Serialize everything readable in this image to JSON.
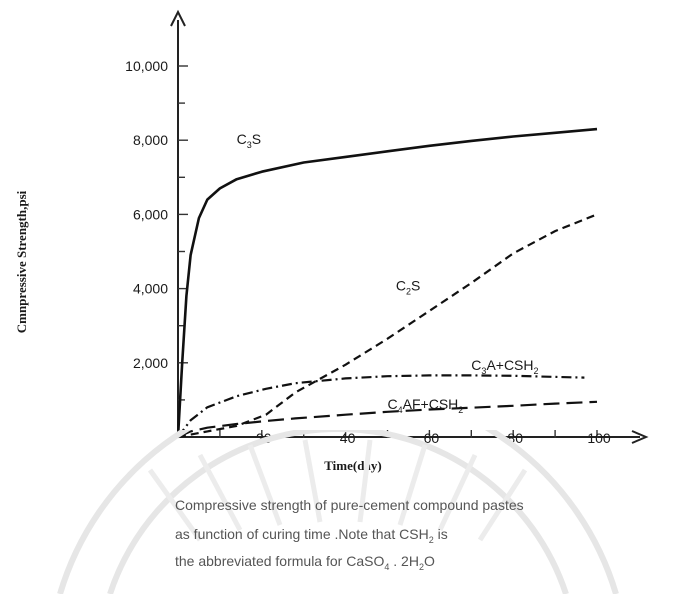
{
  "chart_data": {
    "type": "line",
    "title": "",
    "ylabel": "Cmnpressive Strength,psi",
    "xlabel": "Time(day)",
    "xlim": [
      0,
      110
    ],
    "ylim": [
      0,
      11000
    ],
    "x_ticks": [
      {
        "value": 20,
        "label": "20"
      },
      {
        "value": 40,
        "label": "40"
      },
      {
        "value": 60,
        "label": "60"
      },
      {
        "value": 80,
        "label": "80"
      },
      {
        "value": 100,
        "label": "100"
      }
    ],
    "y_ticks": [
      {
        "value": 2000,
        "label": "2,000"
      },
      {
        "value": 4000,
        "label": "4,000"
      },
      {
        "value": 6000,
        "label": "6,000"
      },
      {
        "value": 8000,
        "label": "8,000"
      },
      {
        "value": 10000,
        "label": "10,000"
      }
    ],
    "grid": false,
    "series": [
      {
        "name": "C3S",
        "name_main": "C",
        "name_sub": "3",
        "name_tail": "S",
        "style": "solid",
        "label_at": {
          "x": 14,
          "y": 7900
        },
        "points": [
          [
            0,
            0
          ],
          [
            1,
            2000
          ],
          [
            2,
            3800
          ],
          [
            3,
            4900
          ],
          [
            5,
            5900
          ],
          [
            7,
            6400
          ],
          [
            10,
            6700
          ],
          [
            14,
            6950
          ],
          [
            20,
            7150
          ],
          [
            30,
            7400
          ],
          [
            40,
            7550
          ],
          [
            50,
            7700
          ],
          [
            60,
            7850
          ],
          [
            70,
            7980
          ],
          [
            80,
            8100
          ],
          [
            90,
            8200
          ],
          [
            100,
            8300
          ]
        ]
      },
      {
        "name": "C2S",
        "name_main": "C",
        "name_sub": "2",
        "name_tail": "S",
        "style": "dashed",
        "label_at": {
          "x": 52,
          "y": 3950
        },
        "points": [
          [
            0,
            0
          ],
          [
            7,
            150
          ],
          [
            14,
            300
          ],
          [
            21,
            600
          ],
          [
            28,
            1200
          ],
          [
            40,
            1950
          ],
          [
            50,
            2650
          ],
          [
            60,
            3400
          ],
          [
            70,
            4150
          ],
          [
            80,
            4950
          ],
          [
            90,
            5550
          ],
          [
            100,
            6000
          ]
        ]
      },
      {
        "name": "C3A+CSH2",
        "name_main": "C",
        "name_sub": "3",
        "name_tail": "A+CSH",
        "name_sub2": "2",
        "style": "dashdot",
        "label_at": {
          "x": 70,
          "y": 1800
        },
        "points": [
          [
            0,
            0
          ],
          [
            3,
            450
          ],
          [
            7,
            800
          ],
          [
            14,
            1100
          ],
          [
            21,
            1300
          ],
          [
            28,
            1450
          ],
          [
            40,
            1580
          ],
          [
            50,
            1640
          ],
          [
            60,
            1660
          ],
          [
            70,
            1660
          ],
          [
            80,
            1650
          ],
          [
            90,
            1620
          ],
          [
            97,
            1600
          ]
        ]
      },
      {
        "name": "C4AF+CSH2",
        "name_main": "C",
        "name_sub": "4",
        "name_tail": "AF+CSH",
        "name_sub2": "2",
        "style": "longdash",
        "label_at": {
          "x": 50,
          "y": 750
        },
        "points": [
          [
            0,
            0
          ],
          [
            3,
            150
          ],
          [
            7,
            250
          ],
          [
            14,
            350
          ],
          [
            21,
            430
          ],
          [
            28,
            500
          ],
          [
            40,
            600
          ],
          [
            50,
            680
          ],
          [
            60,
            740
          ],
          [
            70,
            790
          ],
          [
            80,
            840
          ],
          [
            90,
            900
          ],
          [
            100,
            950
          ]
        ]
      }
    ]
  },
  "caption": {
    "line1": "Compressive strength of pure-cement compound pastes",
    "line2_pre": "as function of curing time .Note that CSH",
    "line2_sub": "2",
    "line2_post": " is",
    "line3_pre": "the abbreviated formula for CaSO",
    "line3_sub1": "4",
    "line3_mid": " . 2H",
    "line3_sub2": "2",
    "line3_post": "O"
  }
}
